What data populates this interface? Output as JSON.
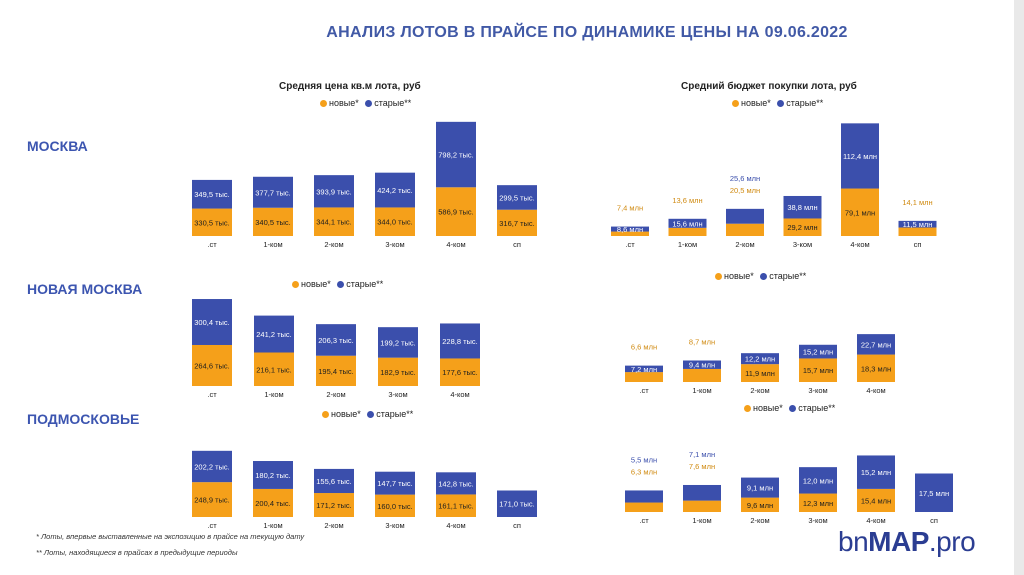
{
  "title": "АНАЛИЗ  ЛОТОВ В ПРАЙСЕ  ПО  ДИНАМИКЕ ЦЕНЫ НА  09.06.2022",
  "regions": {
    "moscow": "МОСКВА",
    "new_moscow": "НОВАЯ МОСКВА",
    "podmoskovye": "ПОДМОСКОВЬЕ"
  },
  "subtitles": {
    "price": "Средняя цена кв.м лота, руб",
    "budget": "Средний бюджет покупки лота, руб"
  },
  "legend": {
    "new": "новые*",
    "old": "старые**"
  },
  "colors": {
    "new": "#f5a01a",
    "old": "#3b4fac",
    "title": "#4159a6"
  },
  "footnotes": {
    "f1": "* Лоты, впервые выставленные на экспозицию в  прайсе на текущую дату",
    "f2": "** Лоты, находящиеся в прайсах в предыдущие периоды"
  },
  "logo": {
    "part1": "bn",
    "part2": "MAP",
    "part3": ".pro"
  },
  "chart_data": [
    {
      "id": "moscow_price",
      "type": "bar",
      "stacked": true,
      "title": "Средняя цена кв.м лота, руб",
      "categories": [
        ".ст",
        "1-ком",
        "2-ком",
        "3-ком",
        "4-ком",
        "сп"
      ],
      "series": [
        {
          "name": "новые*",
          "values": [
            330.5,
            340.5,
            344.1,
            344.0,
            586.9,
            316.7
          ],
          "labels": [
            "330,5 тыс.",
            "340,5 тыс.",
            "344,1 тыс.",
            "344,0 тыс.",
            "586,9 тыс.",
            "316,7 тыс."
          ]
        },
        {
          "name": "старые**",
          "values": [
            349.5,
            377.7,
            393.9,
            424.2,
            798.2,
            299.5
          ],
          "labels": [
            "349,5 тыс.",
            "377,7 тыс.",
            "393,9 тыс.",
            "424,2 тыс.",
            "798,2 тыс.",
            "299,5 тыс."
          ]
        }
      ]
    },
    {
      "id": "moscow_budget",
      "type": "bar",
      "stacked": true,
      "title": "Средний бюджет покупки лота, руб",
      "categories": [
        ".ст",
        "1-ком",
        "2-ком",
        "3-ком",
        "4-ком",
        "сп"
      ],
      "series": [
        {
          "name": "новые*",
          "values": [
            7.4,
            13.6,
            20.5,
            29.2,
            79.1,
            14.1
          ],
          "labels": [
            "7,4 млн",
            "13,6 млн",
            "20,5 млн",
            "29,2 млн",
            "79,1 млн",
            "14,1 млн"
          ]
        },
        {
          "name": "старые**",
          "values": [
            8.6,
            15.6,
            25.6,
            38.8,
            112.4,
            11.5
          ],
          "labels": [
            "8,6 млн",
            "15,6 млн",
            "25,6 млн",
            "38,8 млн",
            "112,4 млн",
            "11,5 млн"
          ]
        }
      ]
    },
    {
      "id": "newmoscow_price",
      "type": "bar",
      "stacked": true,
      "categories": [
        ".ст",
        "1-ком",
        "2-ком",
        "3-ком",
        "4-ком"
      ],
      "series": [
        {
          "name": "новые*",
          "values": [
            264.6,
            216.1,
            195.4,
            182.9,
            177.6
          ],
          "labels": [
            "264,6 тыс.",
            "216,1 тыс.",
            "195,4 тыс.",
            "182,9 тыс.",
            "177,6 тыс."
          ]
        },
        {
          "name": "старые**",
          "values": [
            300.4,
            241.2,
            206.3,
            199.2,
            228.8
          ],
          "labels": [
            "300,4 тыс.",
            "241,2 тыс.",
            "206,3 тыс.",
            "199,2 тыс.",
            "228,8 тыс."
          ]
        }
      ]
    },
    {
      "id": "newmoscow_budget",
      "type": "bar",
      "stacked": true,
      "categories": [
        ".ст",
        "1-ком",
        "2-ком",
        "3-ком",
        "4-ком"
      ],
      "series": [
        {
          "name": "новые*",
          "values": [
            6.6,
            8.7,
            11.9,
            15.7,
            18.3
          ],
          "labels": [
            "6,6 млн",
            "8,7 млн",
            "11,9 млн",
            "15,7 млн",
            "18,3 млн"
          ]
        },
        {
          "name": "старые**",
          "values": [
            7.2,
            9.4,
            12.2,
            15.2,
            22.7
          ],
          "labels": [
            "7,2 млн",
            "9,4 млн",
            "12,2 млн",
            "15,2 млн",
            "22,7 млн"
          ]
        }
      ]
    },
    {
      "id": "podmos_price",
      "type": "bar",
      "stacked": true,
      "categories": [
        ".ст",
        "1-ком",
        "2-ком",
        "3-ком",
        "4-ком",
        "сп"
      ],
      "series": [
        {
          "name": "новые*",
          "values": [
            248.9,
            200.4,
            171.2,
            160.0,
            161.1,
            0
          ],
          "labels": [
            "248,9 тыс.",
            "200,4 тыс.",
            "171,2 тыс.",
            "160,0 тыс.",
            "161,1 тыс.",
            ""
          ]
        },
        {
          "name": "старые**",
          "values": [
            202.2,
            180.2,
            155.6,
            147.7,
            142.8,
            171.0
          ],
          "labels": [
            "202,2 тыс.",
            "180,2 тыс.",
            "155,6 тыс.",
            "147,7 тыс.",
            "142,8 тыс.",
            "171,0 тыс."
          ]
        }
      ]
    },
    {
      "id": "podmos_budget",
      "type": "bar",
      "stacked": true,
      "categories": [
        ".ст",
        "1-ком",
        "2-ком",
        "3-ком",
        "4-ком",
        "сп"
      ],
      "series": [
        {
          "name": "новые*",
          "values": [
            6.3,
            7.6,
            9.6,
            12.3,
            15.4,
            0
          ],
          "labels": [
            "6,3 млн",
            "7,6 млн",
            "9,6 млн",
            "12,3 млн",
            "15,4 млн",
            ""
          ]
        },
        {
          "name": "старые**",
          "values": [
            5.5,
            7.1,
            9.1,
            12.0,
            15.2,
            17.5
          ],
          "labels": [
            "5,5 млн",
            "7,1 млн",
            "9,1 млн",
            "12,0 млн",
            "15,2 млн",
            "17,5 млн"
          ]
        }
      ]
    }
  ]
}
